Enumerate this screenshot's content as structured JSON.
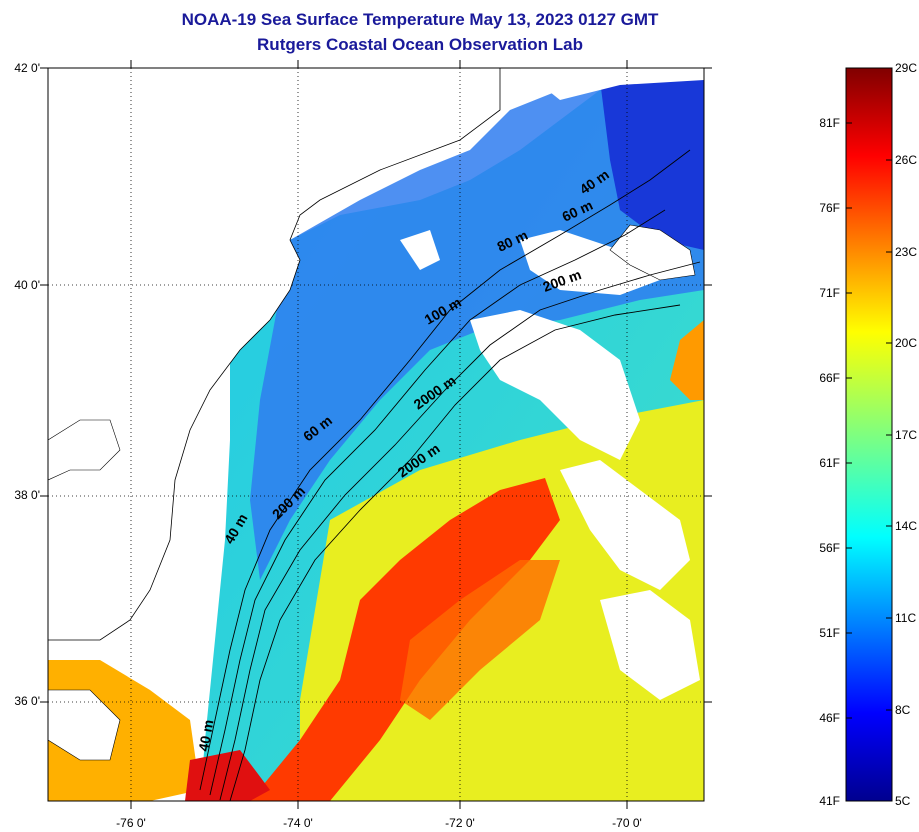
{
  "title": {
    "line1": "NOAA-19 Sea Surface Temperature May 13, 2023 0127 GMT",
    "line2": "Rutgers Coastal Ocean Observation Lab"
  },
  "map": {
    "lat_labels": [
      "42 0'",
      "40 0'",
      "38 0'",
      "36 0'"
    ],
    "lon_labels": [
      "-76 0'",
      "-74 0'",
      "-72 0'",
      "-70 0'"
    ],
    "lat_range": [
      35,
      42
    ],
    "lon_range": [
      -77,
      -69
    ],
    "gridlines": "dotted",
    "land_color": "#ffffff",
    "cloud_color": "#ffffff",
    "coastline_color": "#000000"
  },
  "isobaths": {
    "labels": [
      "40 m",
      "60 m",
      "80 m",
      "100 m",
      "200 m",
      "2000 m",
      "60 m",
      "200 m",
      "2000 m",
      "40 m",
      "40 m"
    ]
  },
  "colorbar": {
    "fahrenheit_labels": [
      "81F",
      "76F",
      "71F",
      "66F",
      "61F",
      "56F",
      "51F",
      "46F",
      "41F"
    ],
    "celsius_labels": [
      "29C",
      "26C",
      "23C",
      "20C",
      "17C",
      "14C",
      "11C",
      "8C",
      "5C"
    ],
    "range_c": [
      5,
      29
    ],
    "colormap": "jet"
  }
}
